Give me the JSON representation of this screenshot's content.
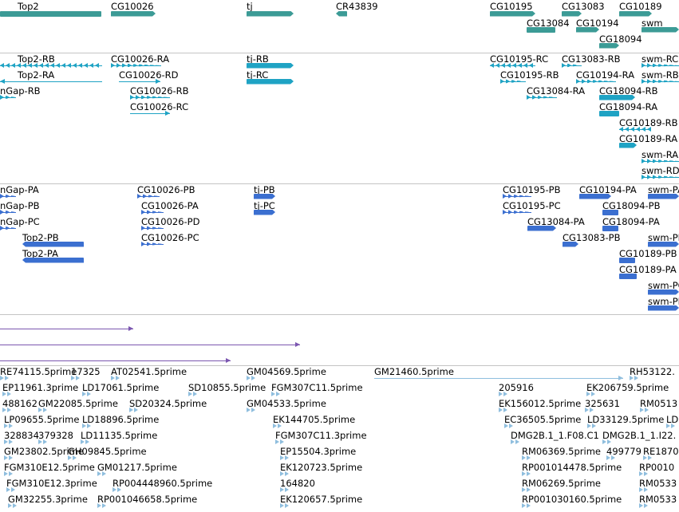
{
  "colors": {
    "gene": "#3c9b96",
    "transcript": "#1fa3c4",
    "protein": "#3b6fd0",
    "segment": "#7b56b0",
    "est": "#8fbede",
    "separator": "#c4c4c4"
  },
  "tracks": {
    "genes": [
      "Top2",
      "CG10026",
      "tj",
      "CR43839",
      "CG10195",
      "CG13083",
      "CG10189",
      "CG13084",
      "CG10194",
      "swm",
      "CG18094"
    ],
    "transcripts": [
      "Top2-RB",
      "Top2-RA",
      "nGap-RB",
      "CG10026-RA",
      "CG10026-RD",
      "CG10026-RB",
      "CG10026-RC",
      "tj-RB",
      "tj-RC",
      "CG10195-RC",
      "CG10195-RB",
      "CG13083-RB",
      "CG10194-RA",
      "CG13084-RA",
      "CG18094-RB",
      "CG18094-RA",
      "CG10189-RB",
      "CG10189-RA",
      "swm-RC",
      "swm-RB",
      "swm-RA",
      "swm-RD"
    ],
    "proteins": [
      "nGap-PA",
      "nGap-PB",
      "nGap-PC",
      "Top2-PB",
      "Top2-PA",
      "CG10026-PB",
      "CG10026-PA",
      "CG10026-PD",
      "CG10026-PC",
      "tj-PB",
      "tj-PC",
      "CG10195-PB",
      "CG10195-PC",
      "CG10194-PA",
      "CG13084-PA",
      "CG18094-PB",
      "CG18094-PA",
      "CG13083-PB",
      "CG10189-PB",
      "CG10189-PA",
      "swm-PA",
      "swm-PB",
      "swm-PC",
      "swm-PD"
    ],
    "ests": [
      "RE74115.5prime",
      "17325",
      "AT02541.5prime",
      "GM04569.5prime",
      "GM21460.5prime",
      "RH53122.",
      "EP11961.3prime",
      "LD17061.5prime",
      "SD10855.5prime",
      "FGM307C11.5prime",
      "205916",
      "EK206759.5prime",
      "488162",
      "GM22085.5prime",
      "SD20324.5prime",
      "GM04533.5prime",
      "EK156012.5prime",
      "325631",
      "RM0513",
      "LP09655.5prime",
      "LD18896.5prime",
      "EK144705.5prime",
      "EC36505.5prime",
      "LD33129.5prime",
      "LD",
      "328834",
      "379328",
      "LD11135.5prime",
      "FGM307C11.3prime",
      "DMG2B.1_1.F08.C1",
      "DMG2B.1_1.I22.",
      "GM23802.5prime",
      "GH09845.5prime",
      "EP15504.3prime",
      "RM06369.5prime",
      "499779",
      "RE1870",
      "FGM310E12.5prime",
      "GM01217.5prime",
      "EK120723.5prime",
      "RP001014478.5prime",
      "RP0010",
      "FGM310E12.3prime",
      "RP004448960.5prime",
      "164820",
      "RM06269.5prime",
      "RM0533",
      "GM32255.3prime",
      "RP001046658.5prime",
      "EK120657.5prime",
      "RP001030160.5prime",
      "RM0533"
    ]
  }
}
